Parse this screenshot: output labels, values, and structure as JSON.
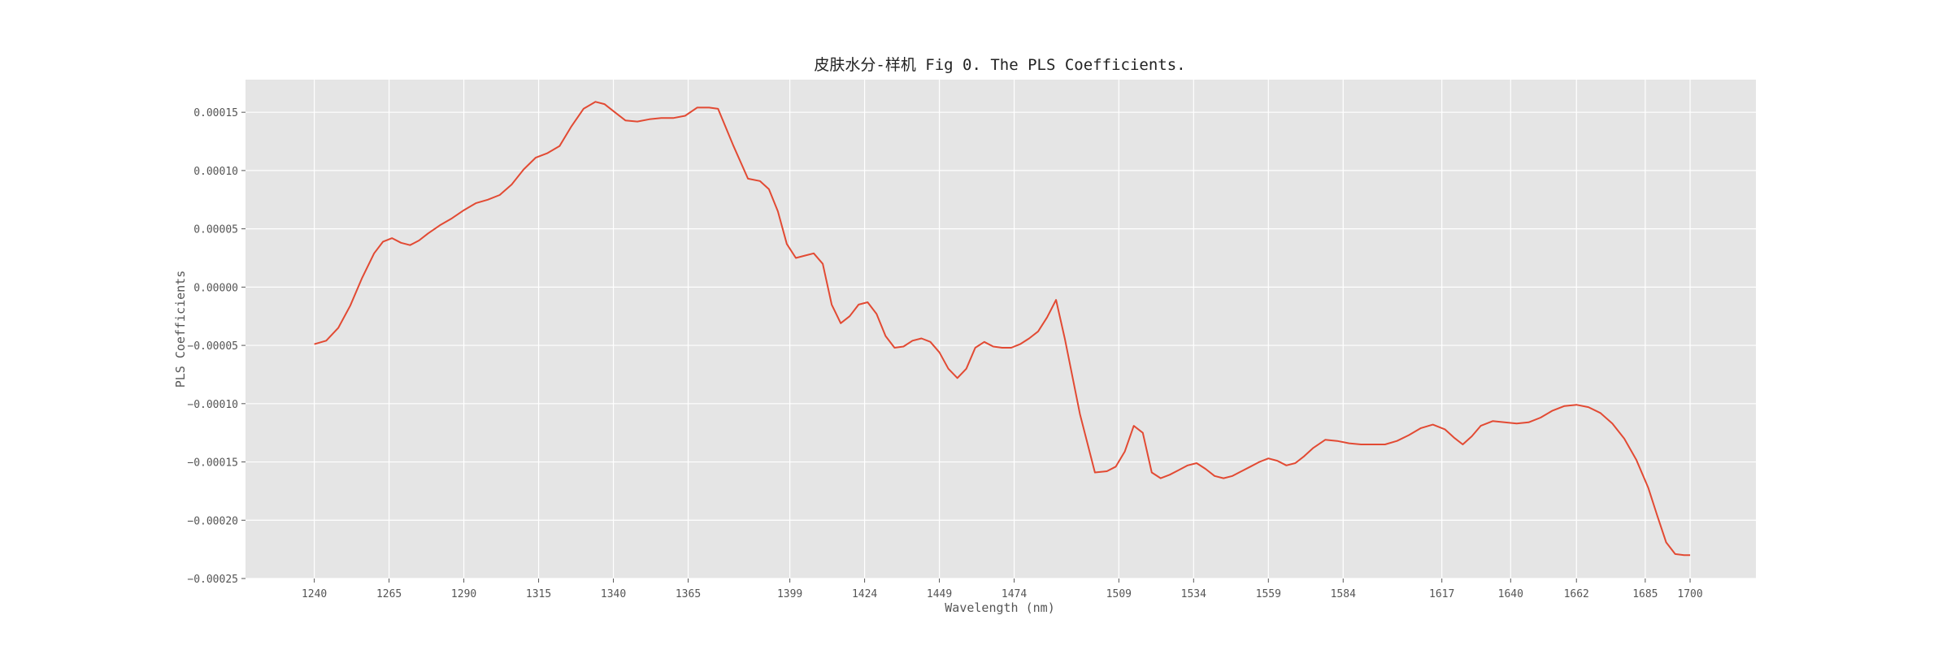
{
  "chart_data": {
    "type": "line",
    "title": "皮肤水分-样机 Fig 0. The PLS Coefficients.",
    "xlabel": "Wavelength (nm)",
    "ylabel": "PLS Coefficients",
    "xlim": [
      1217,
      1722
    ],
    "ylim": [
      -0.00025,
      0.000178
    ],
    "grid": true,
    "x_ticks": [
      1240,
      1265,
      1290,
      1315,
      1340,
      1365,
      1399,
      1424,
      1449,
      1474,
      1509,
      1534,
      1559,
      1584,
      1617,
      1640,
      1662,
      1685,
      1700
    ],
    "y_ticks": [
      -0.00025,
      -0.0002,
      -0.00015,
      -0.0001,
      -5e-05,
      0.0,
      5e-05,
      0.0001,
      0.00015
    ],
    "y_tick_labels": [
      "−0.00025",
      "−0.00020",
      "−0.00015",
      "−0.00010",
      "−0.00005",
      "0.00000",
      "0.00005",
      "0.00010",
      "0.00015"
    ],
    "series": [
      {
        "color": "#E24A33",
        "x": [
          1240,
          1244,
          1248,
          1252,
          1256,
          1260,
          1263,
          1266,
          1269,
          1272,
          1275,
          1278,
          1282,
          1286,
          1290,
          1294,
          1298,
          1302,
          1306,
          1310,
          1314,
          1318,
          1322,
          1326,
          1330,
          1334,
          1337,
          1340,
          1344,
          1348,
          1352,
          1356,
          1360,
          1364,
          1368,
          1372,
          1375,
          1380,
          1385,
          1389,
          1392,
          1395,
          1398,
          1401,
          1404,
          1407,
          1410,
          1413,
          1416,
          1419,
          1422,
          1425,
          1428,
          1431,
          1434,
          1437,
          1440,
          1443,
          1446,
          1449,
          1452,
          1455,
          1458,
          1461,
          1464,
          1467,
          1470,
          1473,
          1476,
          1479,
          1482,
          1485,
          1488,
          1491,
          1496,
          1501,
          1505,
          1508,
          1511,
          1514,
          1517,
          1520,
          1523,
          1526,
          1529,
          1532,
          1535,
          1538,
          1541,
          1544,
          1547,
          1550,
          1553,
          1556,
          1559,
          1562,
          1565,
          1568,
          1571,
          1574,
          1578,
          1582,
          1586,
          1590,
          1594,
          1598,
          1602,
          1606,
          1610,
          1614,
          1618,
          1621,
          1624,
          1627,
          1630,
          1634,
          1638,
          1642,
          1646,
          1650,
          1654,
          1658,
          1662,
          1666,
          1670,
          1674,
          1678,
          1682,
          1686,
          1689,
          1692,
          1695,
          1698,
          1700
        ],
        "y": [
          -4.9e-05,
          -4.6e-05,
          -3.5e-05,
          -1.6e-05,
          8e-06,
          2.9e-05,
          3.9e-05,
          4.2e-05,
          3.8e-05,
          3.6e-05,
          4e-05,
          4.6e-05,
          5.3e-05,
          5.9e-05,
          6.6e-05,
          7.2e-05,
          7.5e-05,
          7.9e-05,
          8.8e-05,
          0.000101,
          0.000111,
          0.000115,
          0.000121,
          0.000138,
          0.000153,
          0.000159,
          0.000157,
          0.000151,
          0.000143,
          0.000142,
          0.000144,
          0.000145,
          0.000145,
          0.000147,
          0.000154,
          0.000154,
          0.000153,
          0.000122,
          9.3e-05,
          9.1e-05,
          8.4e-05,
          6.5e-05,
          3.7e-05,
          2.5e-05,
          2.7e-05,
          2.9e-05,
          2e-05,
          -1.5e-05,
          -3.1e-05,
          -2.5e-05,
          -1.5e-05,
          -1.3e-05,
          -2.3e-05,
          -4.2e-05,
          -5.2e-05,
          -5.1e-05,
          -4.6e-05,
          -4.4e-05,
          -4.7e-05,
          -5.6e-05,
          -7e-05,
          -7.8e-05,
          -7e-05,
          -5.2e-05,
          -4.7e-05,
          -5.1e-05,
          -5.2e-05,
          -5.2e-05,
          -4.9e-05,
          -4.4e-05,
          -3.8e-05,
          -2.6e-05,
          -1.1e-05,
          -4.5e-05,
          -0.000109,
          -0.000159,
          -0.000158,
          -0.000154,
          -0.000141,
          -0.000119,
          -0.000125,
          -0.000159,
          -0.000164,
          -0.000161,
          -0.000157,
          -0.000153,
          -0.000151,
          -0.000156,
          -0.000162,
          -0.000164,
          -0.000162,
          -0.000158,
          -0.000154,
          -0.00015,
          -0.000147,
          -0.000149,
          -0.000153,
          -0.000151,
          -0.000145,
          -0.000138,
          -0.000131,
          -0.000132,
          -0.000134,
          -0.000135,
          -0.000135,
          -0.000135,
          -0.000132,
          -0.000127,
          -0.000121,
          -0.000118,
          -0.000122,
          -0.000129,
          -0.000135,
          -0.000128,
          -0.000119,
          -0.000115,
          -0.000116,
          -0.000117,
          -0.000116,
          -0.000112,
          -0.000106,
          -0.000102,
          -0.000101,
          -0.000103,
          -0.000108,
          -0.000117,
          -0.00013,
          -0.000148,
          -0.000172,
          -0.000196,
          -0.000219,
          -0.000229,
          -0.00023,
          -0.00023
        ]
      }
    ]
  }
}
